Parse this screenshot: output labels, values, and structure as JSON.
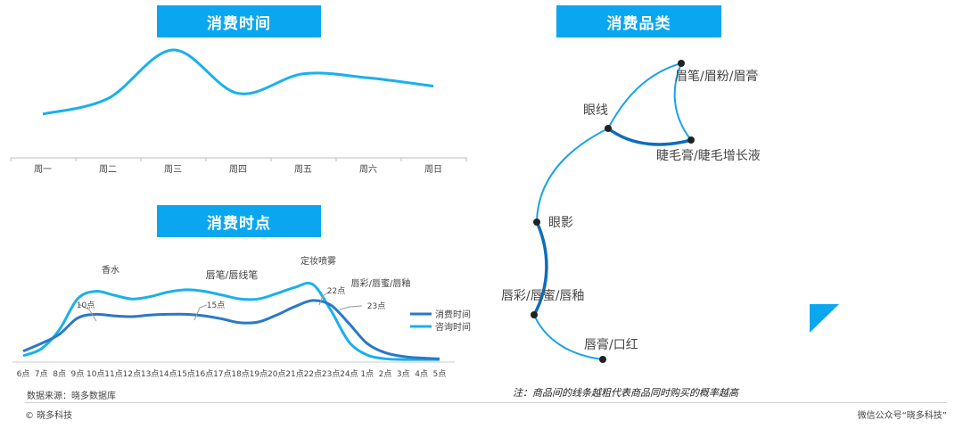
{
  "titles": {
    "weekday": "消费时间",
    "category": "消费品类",
    "hour": "消费时点"
  },
  "chart_data": [
    {
      "type": "line",
      "categories": [
        "周一",
        "周二",
        "周三",
        "周四",
        "周五",
        "周六",
        "周日"
      ],
      "series": [
        {
          "values": [
            38,
            53,
            100,
            58,
            77,
            73,
            65
          ]
        }
      ],
      "ylim": [
        0,
        100
      ],
      "grid": false
    },
    {
      "type": "line",
      "categories": [
        "6点",
        "7点",
        "8点",
        "9点",
        "10点",
        "11点",
        "12点",
        "13点",
        "14点",
        "15点",
        "16点",
        "17点",
        "18点",
        "19点",
        "20点",
        "21点",
        "22点",
        "23点",
        "24点",
        "1点",
        "2点",
        "3点",
        "4点",
        "5点"
      ],
      "series": [
        {
          "name": "消费时间",
          "values": [
            12,
            22,
            34,
            55,
            60,
            58,
            57,
            59,
            60,
            60,
            58,
            54,
            49,
            50,
            59,
            70,
            78,
            72,
            48,
            22,
            10,
            5,
            3,
            2
          ]
        },
        {
          "name": "咨询时间",
          "values": [
            6,
            15,
            40,
            80,
            90,
            85,
            80,
            83,
            89,
            92,
            90,
            85,
            80,
            80,
            87,
            95,
            99,
            65,
            24,
            7,
            2,
            1,
            1,
            1
          ]
        }
      ],
      "annotations": [
        {
          "text": "香水",
          "x": "9点"
        },
        {
          "text": "唇笔/唇线笔",
          "x": "15点"
        },
        {
          "text": "定妆喷雾",
          "x": "22点"
        },
        {
          "text": "唇彩/唇蜜/唇釉",
          "x": "23点"
        },
        {
          "text": "10点",
          "x": "10点"
        },
        {
          "text": "15点",
          "x": "15点"
        },
        {
          "text": "22点",
          "x": "22点"
        },
        {
          "text": "23点",
          "x": "23点"
        }
      ],
      "ylim": [
        0,
        100
      ],
      "legend": "right",
      "grid": false
    }
  ],
  "network": {
    "nodes": [
      {
        "id": "brow",
        "label": "眉笔/眉粉/眉膏"
      },
      {
        "id": "eyeliner",
        "label": "眼线"
      },
      {
        "id": "mascara",
        "label": "睫毛膏/睫毛增长液"
      },
      {
        "id": "eyeshadow",
        "label": "眼影"
      },
      {
        "id": "lipgloss",
        "label": "唇彩/唇蜜/唇釉"
      },
      {
        "id": "lipstick",
        "label": "唇膏/口红"
      }
    ],
    "edges": [
      {
        "from": "eyeliner",
        "to": "brow",
        "weight": 1
      },
      {
        "from": "brow",
        "to": "mascara",
        "weight": 1
      },
      {
        "from": "eyeliner",
        "to": "mascara",
        "weight": 3
      },
      {
        "from": "eyeliner",
        "to": "eyeshadow",
        "weight": 1
      },
      {
        "from": "eyeshadow",
        "to": "lipgloss",
        "weight": 3
      },
      {
        "from": "lipgloss",
        "to": "lipstick",
        "weight": 1
      }
    ],
    "colors": {
      "thin": "#1aa3e8",
      "thick": "#0d6eb8",
      "node": "#222222"
    }
  },
  "colors": {
    "accent": "#0aa7f0",
    "series_consume": "#2a78c8",
    "series_consult": "#1ab0ec"
  },
  "footer": {
    "source": "数据来源：晓多数据库",
    "note": "注：商品间的线条越粗代表商品同时购买的概率越高",
    "copyright": "© 晓多科技",
    "wechat": "微信公众号“晓多科技”"
  }
}
